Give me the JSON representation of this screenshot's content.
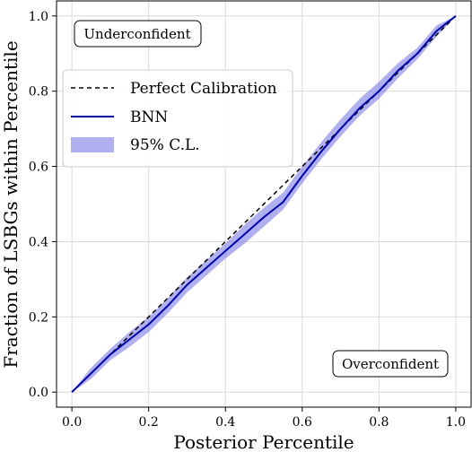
{
  "chart_data": {
    "type": "line",
    "xlabel": "Posterior Percentile",
    "ylabel": "Fraction of LSBGs within Percentile",
    "xlim": [
      -0.04,
      1.04
    ],
    "ylim": [
      -0.04,
      1.04
    ],
    "xticks": [
      0.0,
      0.2,
      0.4,
      0.6,
      0.8,
      1.0
    ],
    "yticks": [
      0.0,
      0.2,
      0.4,
      0.6,
      0.8,
      1.0
    ],
    "tick_labels": [
      "0.0",
      "0.2",
      "0.4",
      "0.6",
      "0.8",
      "1.0"
    ],
    "grid": true,
    "legend_placement": "upper-left",
    "series": [
      {
        "name": "Perfect Calibration",
        "style": "dashed",
        "color": "#000000",
        "x": [
          0.0,
          1.0
        ],
        "y": [
          0.0,
          1.0
        ]
      },
      {
        "name": "BNN",
        "style": "solid",
        "color": "#0000aa",
        "x": [
          0.0,
          0.05,
          0.1,
          0.15,
          0.2,
          0.25,
          0.3,
          0.35,
          0.4,
          0.45,
          0.5,
          0.55,
          0.6,
          0.65,
          0.7,
          0.75,
          0.8,
          0.85,
          0.9,
          0.95,
          1.0
        ],
        "y": [
          0.0,
          0.05,
          0.1,
          0.14,
          0.18,
          0.23,
          0.285,
          0.33,
          0.375,
          0.42,
          0.465,
          0.505,
          0.575,
          0.64,
          0.7,
          0.755,
          0.8,
          0.855,
          0.9,
          0.96,
          1.0
        ]
      }
    ],
    "band": {
      "name": "95% C.L.",
      "color": "#7070e6",
      "x": [
        0.0,
        0.05,
        0.1,
        0.15,
        0.2,
        0.25,
        0.3,
        0.35,
        0.4,
        0.45,
        0.5,
        0.55,
        0.6,
        0.65,
        0.7,
        0.75,
        0.8,
        0.85,
        0.9,
        0.95,
        1.0
      ],
      "lower": [
        0.0,
        0.035,
        0.085,
        0.12,
        0.16,
        0.21,
        0.265,
        0.31,
        0.355,
        0.395,
        0.44,
        0.485,
        0.555,
        0.62,
        0.68,
        0.735,
        0.78,
        0.835,
        0.885,
        0.945,
        1.0
      ],
      "upper": [
        0.0,
        0.065,
        0.115,
        0.16,
        0.2,
        0.25,
        0.305,
        0.35,
        0.395,
        0.445,
        0.49,
        0.53,
        0.6,
        0.665,
        0.725,
        0.78,
        0.825,
        0.875,
        0.915,
        0.975,
        1.0
      ]
    },
    "annotations": [
      "Underconfident",
      "Overconfident"
    ]
  }
}
